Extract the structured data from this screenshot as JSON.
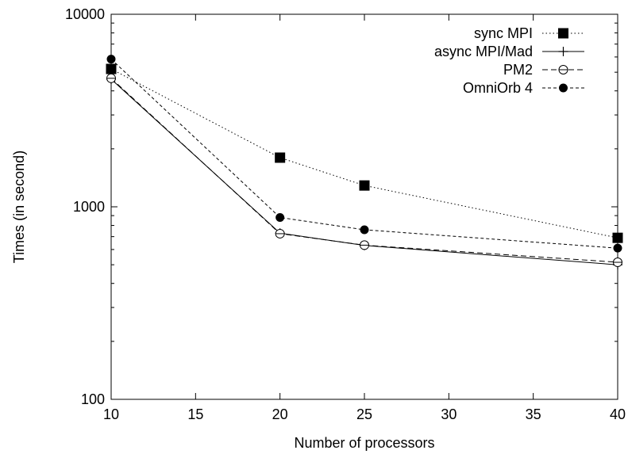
{
  "chart_data": {
    "type": "line",
    "title": "",
    "xlabel": "Number of processors",
    "ylabel": "Times (in second)",
    "x": [
      10,
      20,
      25,
      40
    ],
    "xlim": [
      10,
      40
    ],
    "ylim": [
      100,
      10000
    ],
    "yscale": "log",
    "x_ticks": [
      10,
      15,
      20,
      25,
      30,
      35,
      40
    ],
    "x_tick_labels": [
      "10",
      "15",
      "20",
      "25",
      "30",
      "35",
      "40"
    ],
    "y_ticks": [
      100,
      1000,
      10000
    ],
    "y_tick_labels": [
      "100",
      "1000",
      "10000"
    ],
    "grid": false,
    "legend_position": "top-right",
    "series": [
      {
        "name": "sync MPI",
        "values": [
          5200,
          1800,
          1290,
          690
        ],
        "line_style": "dotted",
        "marker": "filled-square",
        "color": "#000000"
      },
      {
        "name": "async MPI/Mad",
        "values": [
          4600,
          730,
          630,
          500
        ],
        "line_style": "solid",
        "marker": "plus",
        "color": "#000000"
      },
      {
        "name": "PM2",
        "values": [
          4650,
          725,
          632,
          515
        ],
        "line_style": "dashed",
        "marker": "open-circle",
        "color": "#000000"
      },
      {
        "name": "OmniOrb 4",
        "values": [
          5850,
          880,
          760,
          610
        ],
        "line_style": "short-dashed",
        "marker": "filled-circle",
        "color": "#000000"
      }
    ]
  }
}
